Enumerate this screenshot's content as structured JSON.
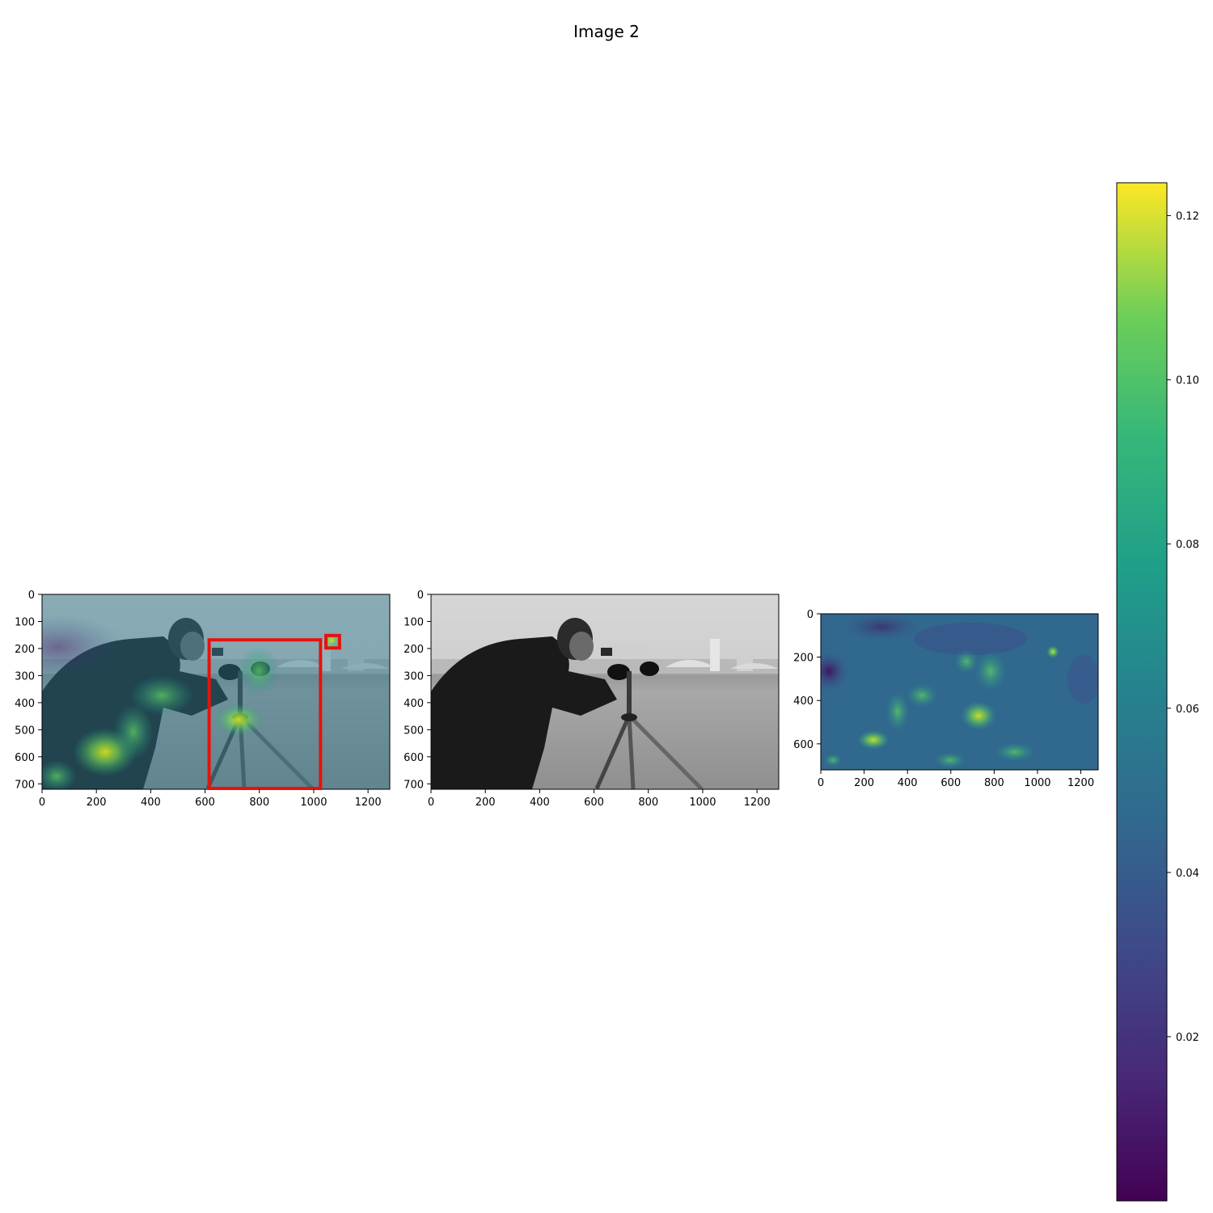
{
  "figure": {
    "title": "Image 2"
  },
  "chart_data": [
    {
      "type": "heatmap",
      "panel": "saliency overlay with detections",
      "description_visible": "grayscale photo of a man with a camera on a tripod, with a viridis saliency heatmap overlaid",
      "x_ticks": [
        "0",
        "200",
        "400",
        "600",
        "800",
        "1000",
        "1200"
      ],
      "y_ticks": [
        "0",
        "100",
        "200",
        "300",
        "400",
        "500",
        "600",
        "700"
      ],
      "xlim": [
        0,
        1280
      ],
      "ylim": [
        720,
        0
      ],
      "boxes": [
        {
          "x0": 615,
          "y0": 168,
          "x1": 1025,
          "y1": 720,
          "color": "#e8110c"
        },
        {
          "x0": 1045,
          "y0": 152,
          "x1": 1095,
          "y1": 198,
          "color": "#e8110c"
        }
      ]
    },
    {
      "type": "heatmap",
      "panel": "original grayscale image",
      "x_ticks": [
        "0",
        "200",
        "400",
        "600",
        "800",
        "1000",
        "1200"
      ],
      "y_ticks": [
        "0",
        "100",
        "200",
        "300",
        "400",
        "500",
        "600",
        "700"
      ],
      "xlim": [
        0,
        1280
      ],
      "ylim": [
        720,
        0
      ]
    },
    {
      "type": "heatmap",
      "panel": "saliency map",
      "colormap": "viridis",
      "x_ticks": [
        "0",
        "200",
        "400",
        "600",
        "800",
        "1000",
        "1200"
      ],
      "y_ticks": [
        "0",
        "200",
        "400",
        "600"
      ],
      "xlim": [
        0,
        1280
      ],
      "ylim": [
        720,
        0
      ],
      "peak": {
        "x": 1075,
        "y": 175
      }
    }
  ],
  "colorbar": {
    "colormap": "viridis",
    "min": 0.0,
    "max": 0.124,
    "ticks": [
      {
        "value": 0.02,
        "label": "0.02"
      },
      {
        "value": 0.04,
        "label": "0.04"
      },
      {
        "value": 0.06,
        "label": "0.06"
      },
      {
        "value": 0.08,
        "label": "0.08"
      },
      {
        "value": 0.1,
        "label": "0.10"
      },
      {
        "value": 0.12,
        "label": "0.12"
      }
    ]
  }
}
